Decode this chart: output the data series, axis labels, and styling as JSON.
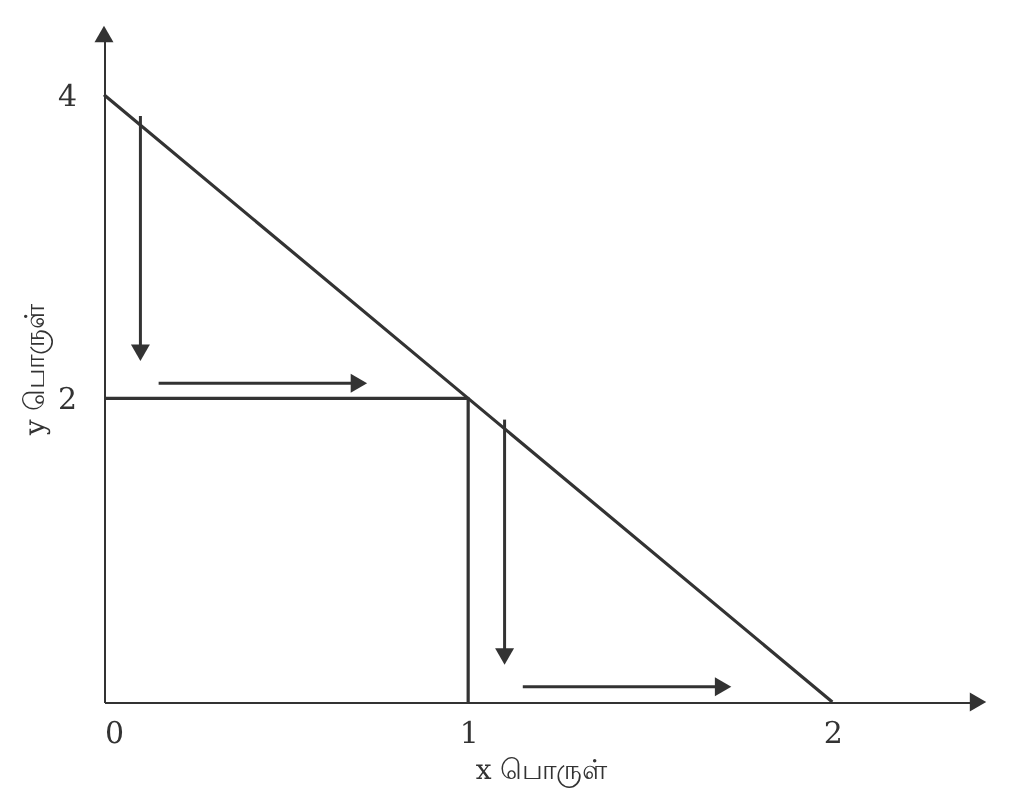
{
  "chart_data": {
    "type": "line",
    "xlabel": "x பொருள்",
    "ylabel": "y பொருள்",
    "series": [
      {
        "color": "#333333",
        "x": [
          0,
          1,
          2
        ],
        "values": [
          4,
          2,
          0
        ]
      },
      {
        "color": "#333333",
        "x": [
          0,
          1,
          1
        ],
        "values": [
          2,
          2,
          0
        ]
      }
    ],
    "xlim": [
      0,
      2.4
    ],
    "ylim": [
      0,
      4.4
    ],
    "xticks": [
      0,
      1,
      2
    ],
    "yticks": [
      2,
      4
    ],
    "grid": false,
    "marker": "none",
    "line_style": "solid"
  }
}
